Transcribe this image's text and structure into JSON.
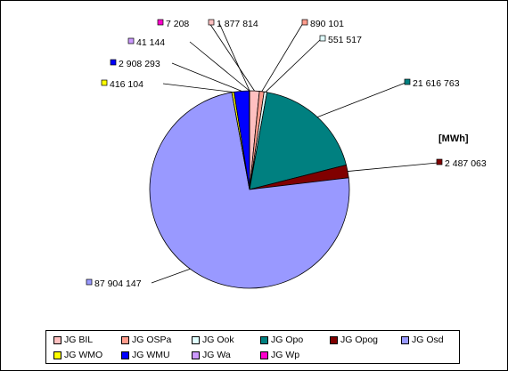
{
  "chart_data": {
    "type": "pie",
    "unit_label": "[MWh]",
    "slices": [
      {
        "name": "JG BIL",
        "value": 1877814,
        "label": "1 877 814",
        "color": "#ffc0c0"
      },
      {
        "name": "JG OSPa",
        "value": 890101,
        "label": "890 101",
        "color": "#ff9c8c"
      },
      {
        "name": "JG Ook",
        "value": 551517,
        "label": "551 517",
        "color": "#e0ffff"
      },
      {
        "name": "JG Opo",
        "value": 21616763,
        "label": "21 616 763",
        "color": "#008080"
      },
      {
        "name": "JG Opog",
        "value": 2487063,
        "label": "2 487 063",
        "color": "#800000"
      },
      {
        "name": "JG Osd",
        "value": 87904147,
        "label": "87 904 147",
        "color": "#9999ff"
      },
      {
        "name": "JG WMO",
        "value": 416104,
        "label": "416 104",
        "color": "#ffff00"
      },
      {
        "name": "JG WMU",
        "value": 2908293,
        "label": "2 908 293",
        "color": "#0000ff"
      },
      {
        "name": "JG Wa",
        "value": 41144,
        "label": "41 144",
        "color": "#cc99ff"
      },
      {
        "name": "JG Wp",
        "value": 7208,
        "label": "7 208",
        "color": "#ff00cc"
      }
    ],
    "legend_position": "bottom"
  }
}
